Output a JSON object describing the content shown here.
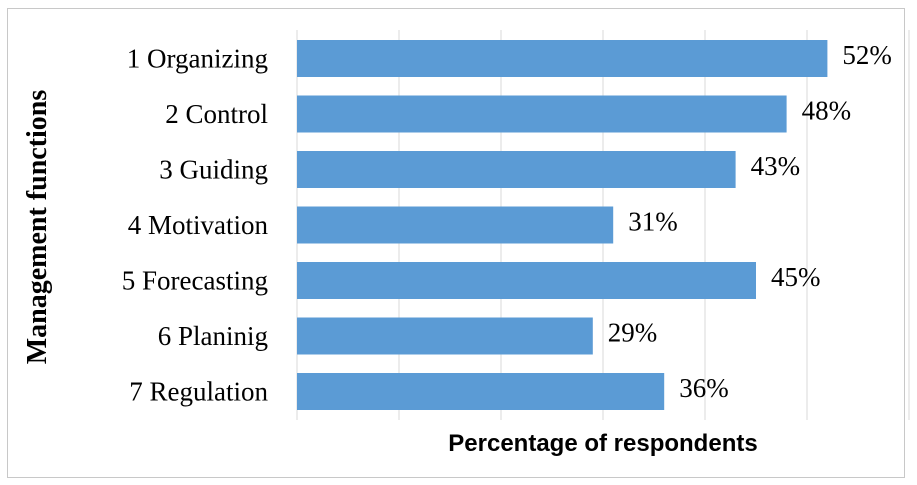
{
  "chart_data": {
    "type": "bar",
    "orientation": "horizontal",
    "categories": [
      "1 Organizing",
      "2 Control",
      "3 Guiding",
      "4 Motivation",
      "5 Forecasting",
      "6 Planinig",
      "7 Regulation"
    ],
    "values": [
      52,
      48,
      43,
      31,
      45,
      29,
      36
    ],
    "value_labels": [
      "52%",
      "48%",
      "43%",
      "31%",
      "45%",
      "29%",
      "36%"
    ],
    "title": "",
    "xlabel": "Percentage of respondents",
    "ylabel": "Management functions",
    "xlim": [
      0,
      60
    ],
    "grid": "vertical",
    "legend": "none",
    "bar_color": "#5B9BD5"
  }
}
